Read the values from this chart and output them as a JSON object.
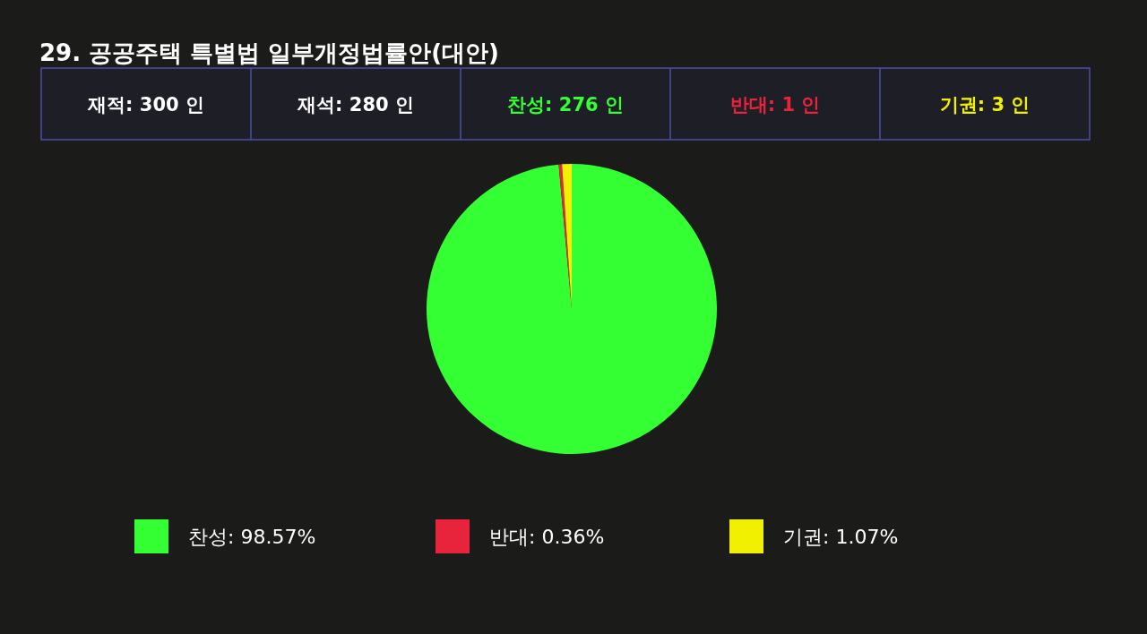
{
  "chart_data": {
    "type": "pie",
    "title": "29. 공공주택 특별법 일부개정법률안(대안)",
    "annotations": [
      "재적: 300 인",
      "재석: 280 인",
      "찬성: 276 인",
      "반대:  1 인",
      "기권:  3 인"
    ],
    "categories": [
      "찬성",
      "반대",
      "기권"
    ],
    "values": [
      98.57,
      0.36,
      1.07
    ],
    "value_labels": [
      "98.57%",
      "0.36%",
      "1.07%"
    ],
    "colors": [
      "#33ff33",
      "#e8243c",
      "#f0f000"
    ],
    "legend": "bottom"
  }
}
